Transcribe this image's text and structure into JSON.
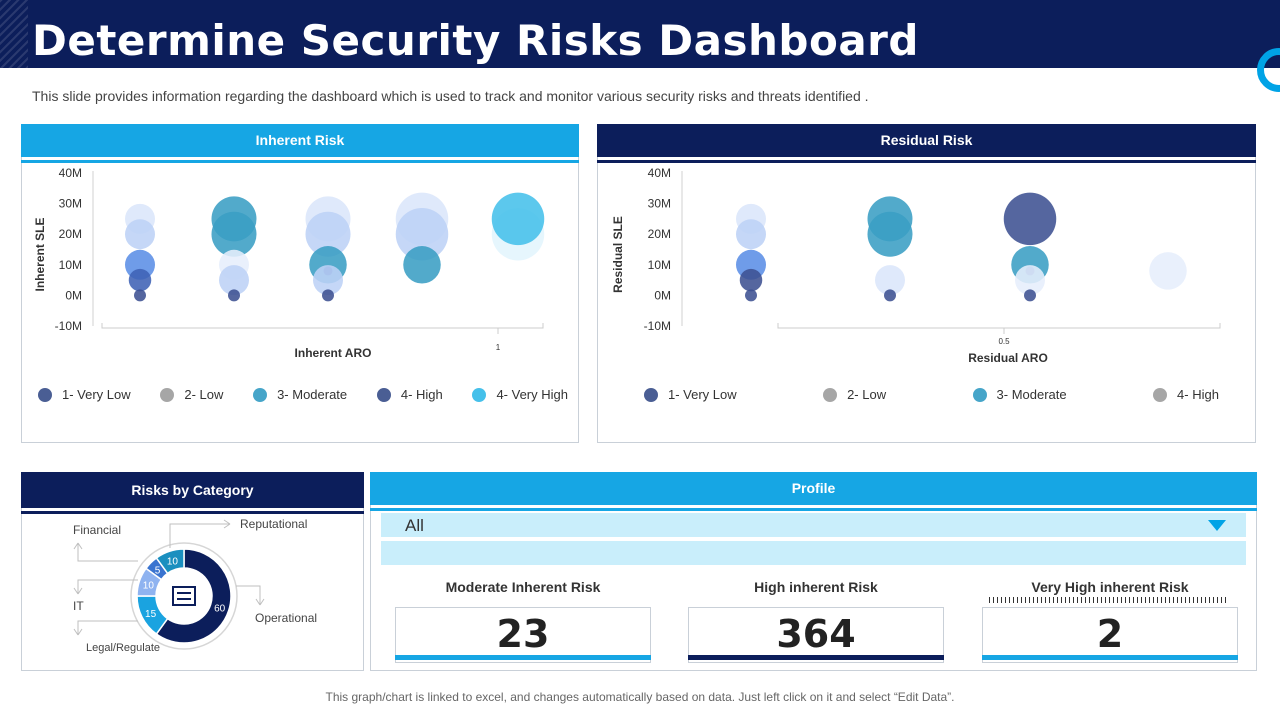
{
  "header": {
    "title": "Determine Security Risks Dashboard",
    "subtitle": "This slide provides information regarding the dashboard which is used to track and monitor various security risks and threats identified ."
  },
  "footer": {
    "note": "This graph/chart is linked to excel,  and changes automatically based on data. Just left click on it and select “Edit Data”."
  },
  "colors": {
    "navy": "#0c1e5b",
    "accent": "#16a6e4",
    "legend_dark": "#4a5e94",
    "legend_grey": "#a6a6a6",
    "legend_teal": "#46a5c9",
    "legend_light": "#45c0ea"
  },
  "inherent": {
    "heading": "Inherent Risk",
    "chart_data": {
      "type": "scatter",
      "title": "Inherent Risk",
      "ylabel": "Inherent SLE",
      "xlabel": "Inherent ARO",
      "y_ticks": [
        "40M",
        "30M",
        "20M",
        "10M",
        "0M",
        "-10M"
      ],
      "ylim": [
        -10,
        40
      ],
      "x_tick_label": "1",
      "categories": [
        "1- Very Low",
        "2- Low",
        "3- Moderate",
        "4- High",
        "4- Very High"
      ],
      "points": [
        {
          "col": 1,
          "y": 25,
          "r": 2,
          "color": "#dbe6fb"
        },
        {
          "col": 1,
          "y": 20,
          "r": 2,
          "color": "#bdd1f6"
        },
        {
          "col": 1,
          "y": 10,
          "r": 2,
          "color": "#5b8ee6"
        },
        {
          "col": 1,
          "y": 5,
          "r": 1.5,
          "color": "#3f62b5"
        },
        {
          "col": 1,
          "y": 0,
          "r": 0.8,
          "color": "#3d5192"
        },
        {
          "col": 2,
          "y": 25,
          "r": 3,
          "color": "#3a9ec4"
        },
        {
          "col": 2,
          "y": 20,
          "r": 3,
          "color": "#3a9ec4"
        },
        {
          "col": 2,
          "y": 10,
          "r": 2,
          "color": "#e6eefc"
        },
        {
          "col": 2,
          "y": 5,
          "r": 2,
          "color": "#bdd1f6"
        },
        {
          "col": 2,
          "y": 0,
          "r": 0.8,
          "color": "#3d5192"
        },
        {
          "col": 3,
          "y": 25,
          "r": 3,
          "color": "#dbe6fb"
        },
        {
          "col": 3,
          "y": 20,
          "r": 3,
          "color": "#bdd1f6"
        },
        {
          "col": 3,
          "y": 10,
          "r": 2.5,
          "color": "#3a9ec4"
        },
        {
          "col": 3,
          "y": 8,
          "r": 0.6,
          "color": "#1c4fa8"
        },
        {
          "col": 3,
          "y": 5,
          "r": 2,
          "color": "#bdd1f6"
        },
        {
          "col": 3,
          "y": 0,
          "r": 0.8,
          "color": "#3d5192"
        },
        {
          "col": 4,
          "y": 25,
          "r": 3.5,
          "color": "#dbe6fb"
        },
        {
          "col": 4,
          "y": 20,
          "r": 3.5,
          "color": "#bdd1f6"
        },
        {
          "col": 4,
          "y": 10,
          "r": 2.5,
          "color": "#3a9ec4"
        },
        {
          "col": 5,
          "y": 20,
          "r": 3.5,
          "color": "#e2f5fd"
        },
        {
          "col": 5,
          "y": 25,
          "r": 3.5,
          "color": "#45c0ea"
        }
      ]
    },
    "legend": [
      {
        "label": "1- Very Low",
        "color": "#4a5e94"
      },
      {
        "label": "2- Low",
        "color": "#a6a6a6"
      },
      {
        "label": "3- Moderate",
        "color": "#46a5c9"
      },
      {
        "label": "4- High",
        "color": "#4a5e94"
      },
      {
        "label": "4- Very High",
        "color": "#45c0ea"
      }
    ]
  },
  "residual": {
    "heading": "Residual Risk",
    "chart_data": {
      "type": "scatter",
      "title": "Residual Risk",
      "ylabel": "Residual  SLE",
      "xlabel": "Residual ARO",
      "y_ticks": [
        "40M",
        "30M",
        "20M",
        "10M",
        "0M",
        "-10M"
      ],
      "ylim": [
        -10,
        40
      ],
      "x_tick_label": "0.5",
      "categories": [
        "1- Very Low",
        "2- Low",
        "3- Moderate",
        "4- High"
      ],
      "points": [
        {
          "col": 1,
          "y": 25,
          "r": 2,
          "color": "#dbe6fb"
        },
        {
          "col": 1,
          "y": 20,
          "r": 2,
          "color": "#bdd1f6"
        },
        {
          "col": 1,
          "y": 10,
          "r": 2,
          "color": "#5b8ee6"
        },
        {
          "col": 1,
          "y": 5,
          "r": 1.5,
          "color": "#3d5192"
        },
        {
          "col": 1,
          "y": 0,
          "r": 0.8,
          "color": "#3d5192"
        },
        {
          "col": 2,
          "y": 25,
          "r": 3,
          "color": "#3a9ec4"
        },
        {
          "col": 2,
          "y": 20,
          "r": 3,
          "color": "#3a9ec4"
        },
        {
          "col": 2,
          "y": 5,
          "r": 2,
          "color": "#dbe6fb"
        },
        {
          "col": 2,
          "y": 0,
          "r": 0.8,
          "color": "#3d5192"
        },
        {
          "col": 3,
          "y": 25,
          "r": 3.5,
          "color": "#3d5192"
        },
        {
          "col": 3,
          "y": 10,
          "r": 2.5,
          "color": "#3a9ec4"
        },
        {
          "col": 3,
          "y": 8,
          "r": 0.6,
          "color": "#1c4fa8"
        },
        {
          "col": 3,
          "y": 5,
          "r": 2,
          "color": "#e6eefc"
        },
        {
          "col": 3,
          "y": 0,
          "r": 0.8,
          "color": "#3d5192"
        },
        {
          "col": 4,
          "y": 8,
          "r": 2.5,
          "color": "#e6eefc"
        }
      ]
    },
    "legend": [
      {
        "label": "1- Very Low",
        "color": "#4a5e94"
      },
      {
        "label": "2- Low",
        "color": "#a6a6a6"
      },
      {
        "label": "3- Moderate",
        "color": "#46a5c9"
      },
      {
        "label": "4- High",
        "color": "#a6a6a6"
      }
    ]
  },
  "category": {
    "heading": "Risks by Category",
    "labels": {
      "financial": "Financial",
      "reputational": "Reputational",
      "it": "IT",
      "operational": "Operational",
      "legal": "Legal/Regulate"
    },
    "chart_data": {
      "type": "pie",
      "title": "Risks by Category",
      "slices": [
        {
          "label": "Operational",
          "value": 60,
          "color": "#0c1e5b"
        },
        {
          "label": "Legal/Regulate",
          "value": 15,
          "color": "#1aa3e0"
        },
        {
          "label": "IT",
          "value": 10,
          "color": "#8fb3f0"
        },
        {
          "label": "Financial",
          "value": 5,
          "color": "#3a74d0"
        },
        {
          "label": "Reputational",
          "value": 10,
          "color": "#1a8fbf"
        }
      ]
    }
  },
  "profile": {
    "heading": "Profile",
    "selected": "All",
    "kpis": [
      {
        "label": "Moderate Inherent Risk",
        "value": "23",
        "line_color": "#16a6e4"
      },
      {
        "label": "High inherent Risk",
        "value": "364",
        "line_color": "#0c1e5b"
      },
      {
        "label": "Very High inherent Risk",
        "value": "2",
        "line_color": "#16a6e4"
      }
    ]
  }
}
